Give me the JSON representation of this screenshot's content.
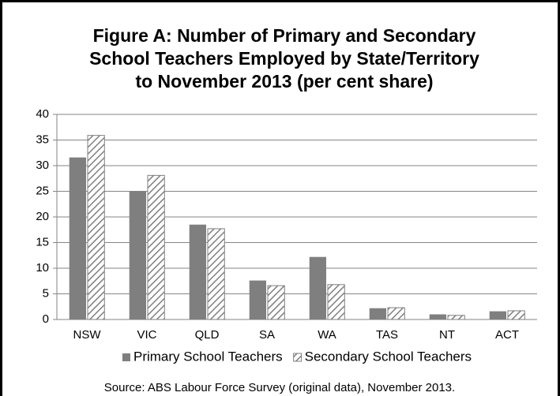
{
  "chart_data": {
    "type": "bar",
    "title": [
      "Figure A: Number of Primary and Secondary",
      "School Teachers Employed by State/Territory",
      "to November 2013 (per cent share)"
    ],
    "categories": [
      "NSW",
      "VIC",
      "QLD",
      "SA",
      "WA",
      "TAS",
      "NT",
      "ACT"
    ],
    "series": [
      {
        "name": "Primary School Teachers",
        "color": "#7f7f7f",
        "values": [
          31.6,
          25,
          18.5,
          7.6,
          12.2,
          2.2,
          1.0,
          1.6
        ]
      },
      {
        "name": "Secondary School Teachers",
        "color": "#7f7f7f",
        "pattern": "hatch",
        "values": [
          35.9,
          28.1,
          17.7,
          6.6,
          6.8,
          2.3,
          0.8,
          1.7
        ]
      }
    ],
    "ylim": [
      0,
      40
    ],
    "yticks": [
      0,
      5,
      10,
      15,
      20,
      25,
      30,
      35,
      40
    ],
    "grid": true,
    "legend": "bottom",
    "source": "Source: ABS Labour Force Survey (original data), November 2013."
  }
}
